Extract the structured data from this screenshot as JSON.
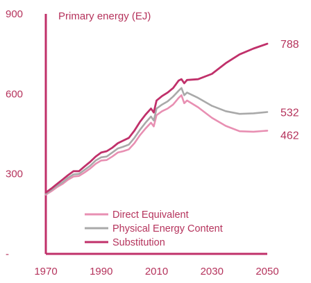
{
  "chart_data": {
    "type": "line",
    "ylabel": "Primary energy (EJ)",
    "xlim": [
      1970,
      2050
    ],
    "ylim": [
      0,
      900
    ],
    "x_ticks": [
      "1970",
      "1990",
      "2010",
      "2030",
      "2050"
    ],
    "y_ticks": [
      {
        "label": "900",
        "value": 900
      },
      {
        "label": "600",
        "value": 600
      },
      {
        "label": "300",
        "value": 300
      },
      {
        "label": "-",
        "value": 0
      }
    ],
    "grid": false,
    "legend": "bottom-left",
    "series": [
      {
        "name": "Direct Equivalent",
        "color": "#e88fb2",
        "end_label": "462",
        "x": [
          1970,
          1972,
          1974,
          1976,
          1978,
          1980,
          1982,
          1984,
          1986,
          1988,
          1990,
          1992,
          1994,
          1996,
          1998,
          2000,
          2002,
          2004,
          2006,
          2008,
          2009,
          2010,
          2012,
          2014,
          2016,
          2018,
          2019,
          2020,
          2021,
          2025,
          2030,
          2035,
          2040,
          2045,
          2050
        ],
        "y": [
          222,
          235,
          250,
          262,
          278,
          290,
          292,
          305,
          320,
          338,
          350,
          352,
          365,
          380,
          385,
          392,
          415,
          445,
          470,
          492,
          478,
          520,
          535,
          545,
          560,
          585,
          595,
          565,
          575,
          550,
          510,
          480,
          460,
          458,
          462
        ]
      },
      {
        "name": "Physical Energy Content",
        "color": "#a9a9a9",
        "end_label": "532",
        "x": [
          1970,
          1972,
          1974,
          1976,
          1978,
          1980,
          1982,
          1984,
          1986,
          1988,
          1990,
          1992,
          1994,
          1996,
          1998,
          2000,
          2002,
          2004,
          2006,
          2008,
          2009,
          2010,
          2012,
          2014,
          2016,
          2018,
          2019,
          2020,
          2021,
          2025,
          2030,
          2035,
          2040,
          2045,
          2050
        ],
        "y": [
          225,
          240,
          255,
          268,
          285,
          298,
          300,
          315,
          330,
          350,
          362,
          365,
          380,
          395,
          402,
          410,
          435,
          465,
          492,
          515,
          500,
          545,
          560,
          572,
          590,
          612,
          622,
          595,
          605,
          585,
          555,
          535,
          525,
          527,
          532
        ]
      },
      {
        "name": "Substitution",
        "color": "#c0306a",
        "end_label": "788",
        "x": [
          1970,
          1972,
          1974,
          1976,
          1978,
          1980,
          1982,
          1984,
          1986,
          1988,
          1990,
          1992,
          1994,
          1996,
          1998,
          2000,
          2002,
          2004,
          2006,
          2008,
          2009,
          2010,
          2012,
          2014,
          2016,
          2018,
          2019,
          2020,
          2021,
          2025,
          2030,
          2035,
          2040,
          2045,
          2050
        ],
        "y": [
          230,
          245,
          262,
          278,
          295,
          310,
          310,
          328,
          345,
          365,
          380,
          385,
          398,
          415,
          425,
          435,
          462,
          495,
          522,
          545,
          530,
          575,
          592,
          605,
          622,
          650,
          655,
          640,
          652,
          655,
          675,
          715,
          748,
          770,
          788
        ]
      }
    ]
  }
}
